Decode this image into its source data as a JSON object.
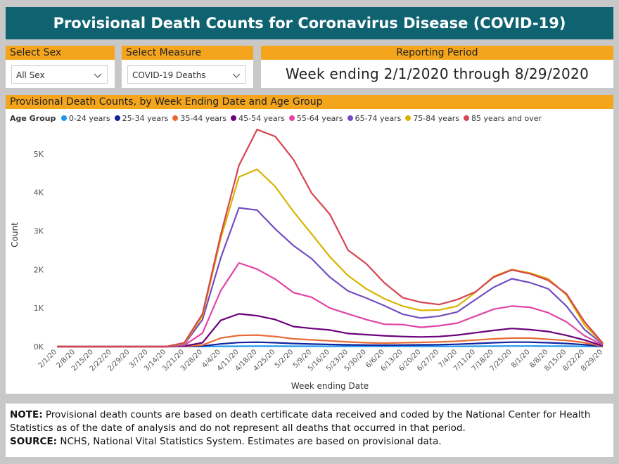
{
  "header": {
    "title": "Provisional Death Counts for Coronavirus Disease (COVID-19)"
  },
  "filters": {
    "sex": {
      "label": "Select Sex",
      "value": "All Sex",
      "icon": "chevron-down-icon"
    },
    "measure": {
      "label": "Select Measure",
      "value": "COVID-19 Deaths",
      "icon": "chevron-down-icon"
    }
  },
  "reporting": {
    "label": "Reporting Period",
    "value": "Week ending 2/1/2020 through 8/29/2020"
  },
  "chart_section": {
    "title": "Provisional Death Counts, by Week Ending Date and Age Group"
  },
  "chart_data": {
    "type": "line",
    "title": "Provisional Death Counts, by Week Ending Date and Age Group",
    "xlabel": "Week ending Date",
    "ylabel": "Count",
    "legend_title": "Age Group",
    "legend_position": "top-left",
    "grid": false,
    "ylim": [
      0,
      5800
    ],
    "yticks": [
      0,
      1000,
      2000,
      3000,
      4000,
      5000
    ],
    "ytick_labels": [
      "0K",
      "1K",
      "2K",
      "3K",
      "4K",
      "5K"
    ],
    "x": [
      "2/1/20",
      "2/8/20",
      "2/15/20",
      "2/22/20",
      "2/29/20",
      "3/7/20",
      "3/14/20",
      "3/21/20",
      "3/28/20",
      "4/4/20",
      "4/11/20",
      "4/18/20",
      "4/25/20",
      "5/2/20",
      "5/9/20",
      "5/16/20",
      "5/23/20",
      "5/30/20",
      "6/6/20",
      "6/13/20",
      "6/20/20",
      "6/27/20",
      "7/4/20",
      "7/11/20",
      "7/18/20",
      "7/25/20",
      "8/1/20",
      "8/8/20",
      "8/15/20",
      "8/22/20",
      "8/29/20"
    ],
    "series": [
      {
        "name": "0-24 years",
        "color": "#1f96f0",
        "values": [
          0,
          0,
          0,
          0,
          0,
          0,
          0,
          1,
          3,
          7,
          10,
          12,
          11,
          10,
          9,
          8,
          7,
          7,
          6,
          7,
          7,
          7,
          8,
          10,
          13,
          14,
          15,
          13,
          11,
          7,
          1
        ]
      },
      {
        "name": "25-34 years",
        "color": "#12239e",
        "values": [
          0,
          0,
          0,
          0,
          0,
          0,
          0,
          3,
          15,
          70,
          105,
          115,
          100,
          80,
          65,
          55,
          45,
          40,
          36,
          40,
          45,
          50,
          60,
          80,
          100,
          115,
          115,
          100,
          80,
          50,
          5
        ]
      },
      {
        "name": "35-44 years",
        "color": "#e66c37",
        "values": [
          0,
          0,
          0,
          0,
          0,
          0,
          0,
          6,
          40,
          220,
          290,
          300,
          260,
          200,
          175,
          150,
          120,
          100,
          90,
          100,
          110,
          120,
          140,
          170,
          200,
          220,
          220,
          190,
          160,
          100,
          10
        ]
      },
      {
        "name": "45-54 years",
        "color": "#6b007b",
        "values": [
          0,
          0,
          0,
          0,
          0,
          0,
          0,
          15,
          100,
          680,
          850,
          800,
          700,
          520,
          470,
          430,
          340,
          310,
          280,
          260,
          250,
          260,
          300,
          360,
          420,
          470,
          440,
          390,
          290,
          170,
          20
        ]
      },
      {
        "name": "55-64 years",
        "color": "#e044a7",
        "values": [
          0,
          0,
          0,
          0,
          0,
          0,
          0,
          35,
          350,
          1450,
          2170,
          2010,
          1750,
          1400,
          1280,
          1000,
          850,
          700,
          580,
          570,
          500,
          540,
          610,
          790,
          970,
          1050,
          1020,
          880,
          640,
          280,
          40
        ]
      },
      {
        "name": "65-74 years",
        "color": "#744ec2",
        "values": [
          0,
          0,
          0,
          0,
          0,
          0,
          0,
          60,
          700,
          2300,
          3600,
          3540,
          3050,
          2620,
          2280,
          1800,
          1440,
          1260,
          1060,
          840,
          740,
          790,
          900,
          1220,
          1540,
          1760,
          1660,
          1500,
          1050,
          440,
          60
        ]
      },
      {
        "name": "75-84 years",
        "color": "#d9b300",
        "values": [
          0,
          0,
          0,
          0,
          0,
          0,
          0,
          80,
          800,
          2800,
          4400,
          4600,
          4150,
          3500,
          2920,
          2330,
          1840,
          1500,
          1240,
          1050,
          940,
          950,
          1050,
          1410,
          1820,
          2000,
          1910,
          1760,
          1340,
          560,
          80
        ]
      },
      {
        "name": "85 years and over",
        "color": "#d64550",
        "values": [
          0,
          0,
          0,
          0,
          0,
          0,
          0,
          100,
          850,
          2900,
          4700,
          5630,
          5450,
          4850,
          3980,
          3430,
          2500,
          2150,
          1650,
          1270,
          1150,
          1090,
          1220,
          1420,
          1800,
          1990,
          1890,
          1720,
          1370,
          640,
          90
        ]
      }
    ]
  },
  "note": {
    "note_label": "NOTE:",
    "note_text": " Provisional death counts are based on death certificate data received and coded by the National Center for Health Statistics as of the date of analysis and do not represent all deaths that occurred in that period.",
    "source_label": "SOURCE:",
    "source_text": " NCHS, National Vital Statistics System. Estimates are based on provisional data."
  }
}
